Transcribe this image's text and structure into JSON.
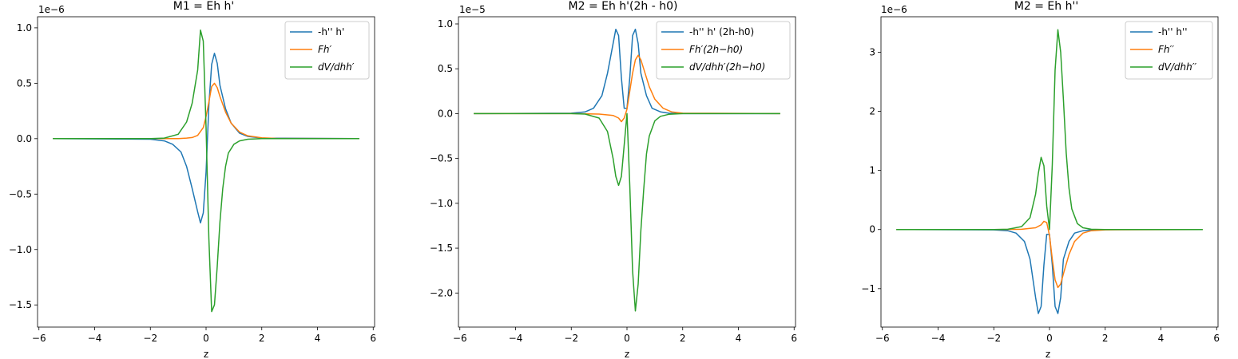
{
  "chart_data": [
    {
      "type": "line",
      "title": "M1 = Eh h'",
      "xlabel": "z",
      "ylabel": "",
      "offset_text": "1e−6",
      "xlim": [
        -6.05,
        6.05
      ],
      "ylim": [
        -1.7,
        1.1
      ],
      "xticks": [
        -6,
        -4,
        -2,
        0,
        2,
        4,
        6
      ],
      "xtick_labels": [
        "−6",
        "−4",
        "−2",
        "0",
        "2",
        "4",
        "6"
      ],
      "yticks": [
        -1.5,
        -1.0,
        -0.5,
        0.0,
        0.5,
        1.0
      ],
      "ytick_labels": [
        "−1.5",
        "−1.0",
        "−0.5",
        "0.0",
        "0.5",
        "1.0"
      ],
      "legend_position": "top-right",
      "grid": false,
      "series": [
        {
          "name": "-h'' h'",
          "color": "#1f77b4",
          "x": [
            -5.5,
            -2.0,
            -1.5,
            -1.2,
            -0.9,
            -0.7,
            -0.5,
            -0.3,
            -0.2,
            -0.1,
            0.0,
            0.1,
            0.2,
            0.3,
            0.4,
            0.5,
            0.7,
            0.9,
            1.2,
            1.5,
            2.0,
            5.5
          ],
          "y": [
            0,
            -0.005,
            -0.02,
            -0.05,
            -0.12,
            -0.25,
            -0.45,
            -0.66,
            -0.76,
            -0.67,
            -0.3,
            0.3,
            0.67,
            0.77,
            0.68,
            0.48,
            0.27,
            0.14,
            0.05,
            0.02,
            0.005,
            0
          ]
        },
        {
          "name": "Fh′",
          "color": "#ff7f0e",
          "x": [
            -5.5,
            -2.0,
            -1.5,
            -1.0,
            -0.7,
            -0.5,
            -0.3,
            -0.1,
            0.0,
            0.1,
            0.2,
            0.3,
            0.4,
            0.5,
            0.7,
            0.9,
            1.2,
            1.5,
            2.0,
            2.5,
            5.5
          ],
          "y": [
            0,
            0,
            0,
            0,
            0.005,
            0.01,
            0.03,
            0.1,
            0.2,
            0.33,
            0.47,
            0.5,
            0.46,
            0.38,
            0.24,
            0.14,
            0.06,
            0.025,
            0.008,
            0.002,
            0
          ]
        },
        {
          "name": "dV/dhh′",
          "color": "#2ca02c",
          "x": [
            -5.5,
            -2.0,
            -1.5,
            -1.0,
            -0.7,
            -0.5,
            -0.3,
            -0.2,
            -0.1,
            0.0,
            0.1,
            0.2,
            0.3,
            0.4,
            0.5,
            0.6,
            0.7,
            0.8,
            1.0,
            1.2,
            1.5,
            2.0,
            5.5
          ],
          "y": [
            0,
            0,
            0.005,
            0.04,
            0.15,
            0.32,
            0.62,
            0.98,
            0.88,
            0.1,
            -0.9,
            -1.56,
            -1.5,
            -1.15,
            -0.75,
            -0.45,
            -0.25,
            -0.13,
            -0.05,
            -0.02,
            -0.005,
            0,
            0
          ]
        }
      ]
    },
    {
      "type": "line",
      "title": "M2 = Eh h'(2h - h0)",
      "xlabel": "z",
      "ylabel": "",
      "offset_text": "1e−5",
      "xlim": [
        -6.05,
        6.05
      ],
      "ylim": [
        -2.38,
        1.08
      ],
      "xticks": [
        -6,
        -4,
        -2,
        0,
        2,
        4,
        6
      ],
      "xtick_labels": [
        "−6",
        "−4",
        "−2",
        "0",
        "2",
        "4",
        "6"
      ],
      "yticks": [
        -2.0,
        -1.5,
        -1.0,
        -0.5,
        0.0,
        0.5,
        1.0
      ],
      "ytick_labels": [
        "−2.0",
        "−1.5",
        "−1.0",
        "−0.5",
        "0.0",
        "0.5",
        "1.0"
      ],
      "legend_position": "top-right",
      "grid": false,
      "series": [
        {
          "name": "-h'' h' (2h-h0)",
          "color": "#1f77b4",
          "x": [
            -5.5,
            -2.0,
            -1.5,
            -1.2,
            -0.9,
            -0.7,
            -0.5,
            -0.4,
            -0.3,
            -0.2,
            -0.1,
            0.0,
            0.1,
            0.2,
            0.3,
            0.4,
            0.5,
            0.7,
            0.9,
            1.2,
            1.5,
            2.0,
            5.5
          ],
          "y": [
            0,
            0.005,
            0.02,
            0.06,
            0.2,
            0.45,
            0.78,
            0.94,
            0.87,
            0.4,
            0.06,
            0.06,
            0.4,
            0.87,
            0.94,
            0.78,
            0.45,
            0.2,
            0.06,
            0.02,
            0.005,
            0,
            0
          ]
        },
        {
          "name": "Fh′(2h−h0)",
          "color": "#ff7f0e",
          "x": [
            -5.5,
            -2.0,
            -1.0,
            -0.5,
            -0.3,
            -0.2,
            -0.1,
            0.0,
            0.1,
            0.2,
            0.3,
            0.4,
            0.5,
            0.6,
            0.8,
            1.0,
            1.3,
            1.6,
            2.0,
            5.5
          ],
          "y": [
            0,
            0,
            -0.005,
            -0.02,
            -0.05,
            -0.09,
            -0.05,
            0.05,
            0.25,
            0.45,
            0.6,
            0.65,
            0.6,
            0.5,
            0.3,
            0.16,
            0.06,
            0.02,
            0.005,
            0
          ]
        },
        {
          "name": "dV/dhh′(2h−h0)",
          "color": "#2ca02c",
          "x": [
            -5.5,
            -2.0,
            -1.5,
            -1.0,
            -0.7,
            -0.5,
            -0.4,
            -0.3,
            -0.2,
            -0.1,
            0.0,
            0.1,
            0.2,
            0.3,
            0.4,
            0.5,
            0.6,
            0.7,
            0.8,
            1.0,
            1.2,
            1.5,
            2.0,
            5.5
          ],
          "y": [
            0,
            0,
            -0.005,
            -0.05,
            -0.2,
            -0.5,
            -0.7,
            -0.8,
            -0.7,
            -0.35,
            0.0,
            -0.8,
            -1.75,
            -2.2,
            -1.9,
            -1.3,
            -0.85,
            -0.45,
            -0.25,
            -0.08,
            -0.03,
            -0.008,
            0,
            0
          ]
        }
      ]
    },
    {
      "type": "line",
      "title": "M2 = Eh h''",
      "xlabel": "z",
      "ylabel": "",
      "offset_text": "1e−6",
      "xlim": [
        -6.05,
        6.05
      ],
      "ylim": [
        -1.65,
        3.6
      ],
      "xticks": [
        -6,
        -4,
        -2,
        0,
        2,
        4,
        6
      ],
      "xtick_labels": [
        "−6",
        "−4",
        "−2",
        "0",
        "2",
        "4",
        "6"
      ],
      "yticks": [
        -1,
        0,
        1,
        2,
        3
      ],
      "ytick_labels": [
        "−1",
        "0",
        "1",
        "2",
        "3"
      ],
      "legend_position": "top-right",
      "grid": false,
      "series": [
        {
          "name": "-h'' h''",
          "color": "#1f77b4",
          "x": [
            -5.5,
            -2.0,
            -1.5,
            -1.2,
            -0.9,
            -0.7,
            -0.5,
            -0.4,
            -0.3,
            -0.2,
            -0.1,
            0.0,
            0.1,
            0.2,
            0.3,
            0.4,
            0.5,
            0.7,
            0.9,
            1.2,
            1.5,
            2.0,
            5.5
          ],
          "y": [
            0,
            -0.005,
            -0.02,
            -0.06,
            -0.2,
            -0.5,
            -1.15,
            -1.42,
            -1.3,
            -0.6,
            -0.08,
            -0.08,
            -0.6,
            -1.3,
            -1.42,
            -1.15,
            -0.5,
            -0.2,
            -0.06,
            -0.02,
            -0.005,
            0,
            0
          ]
        },
        {
          "name": "Fh′′",
          "color": "#ff7f0e",
          "x": [
            -5.5,
            -2.0,
            -1.0,
            -0.5,
            -0.3,
            -0.2,
            -0.1,
            0.0,
            0.1,
            0.2,
            0.3,
            0.4,
            0.5,
            0.7,
            0.9,
            1.2,
            1.5,
            2.0,
            5.5
          ],
          "y": [
            0,
            0,
            0.005,
            0.03,
            0.08,
            0.14,
            0.12,
            -0.1,
            -0.5,
            -0.85,
            -0.98,
            -0.92,
            -0.75,
            -0.42,
            -0.2,
            -0.06,
            -0.02,
            -0.005,
            0
          ]
        },
        {
          "name": "dV/dhh′′",
          "color": "#2ca02c",
          "x": [
            -5.5,
            -2.0,
            -1.5,
            -1.0,
            -0.7,
            -0.5,
            -0.4,
            -0.3,
            -0.2,
            -0.1,
            0.0,
            0.1,
            0.2,
            0.3,
            0.4,
            0.5,
            0.6,
            0.7,
            0.8,
            1.0,
            1.2,
            1.5,
            2.0,
            5.5
          ],
          "y": [
            0,
            0,
            0.005,
            0.05,
            0.2,
            0.6,
            0.95,
            1.22,
            1.08,
            0.4,
            0.0,
            1.1,
            2.7,
            3.38,
            3.0,
            2.2,
            1.3,
            0.7,
            0.35,
            0.1,
            0.03,
            0.005,
            0,
            0
          ]
        }
      ]
    }
  ]
}
